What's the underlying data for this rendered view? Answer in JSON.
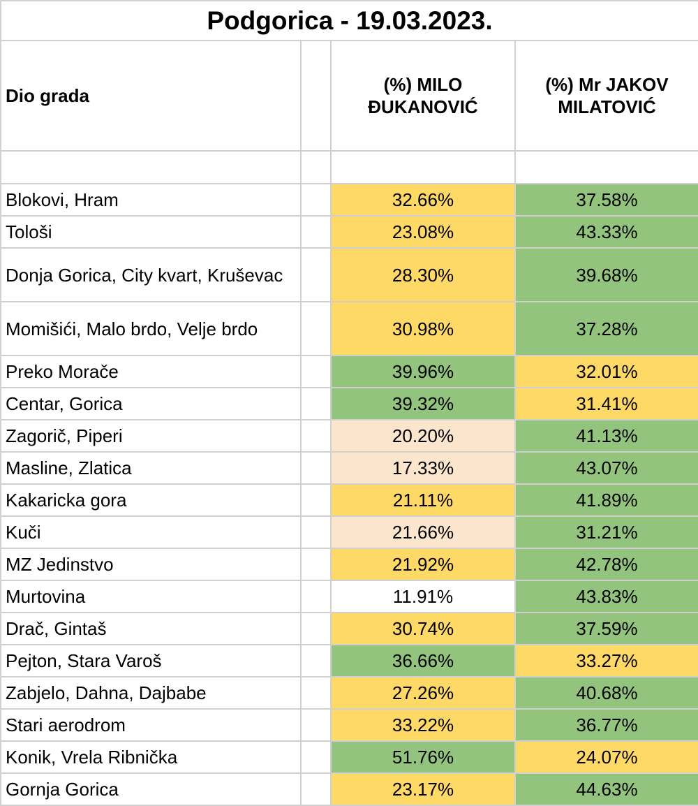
{
  "title": "Podgorica - 19.03.2023.",
  "headers": {
    "district": "Dio grada",
    "djukanovic": "(%) MILO ĐUKANOVIĆ",
    "milatovic": "(%) Mr JAKOV MILATOVIĆ"
  },
  "colors": {
    "yellow": "#ffd966",
    "green": "#93c47d",
    "peach": "#fce5cd",
    "white": "#ffffff"
  },
  "rows": [
    {
      "district": "Blokovi, Hram",
      "djukanovic": "32.66%",
      "milatovic": "37.58%",
      "c1": "yellow",
      "c2": "green"
    },
    {
      "district": "Tološi",
      "djukanovic": "23.08%",
      "milatovic": "43.33%",
      "c1": "yellow",
      "c2": "green"
    },
    {
      "district": "Donja Gorica, City kvart, Kruševac",
      "djukanovic": "28.30%",
      "milatovic": "39.68%",
      "c1": "yellow",
      "c2": "green"
    },
    {
      "district": "Momišići, Malo brdo, Velje brdo",
      "djukanovic": "30.98%",
      "milatovic": "37.28%",
      "c1": "yellow",
      "c2": "green"
    },
    {
      "district": "Preko Morače",
      "djukanovic": "39.96%",
      "milatovic": "32.01%",
      "c1": "green",
      "c2": "yellow"
    },
    {
      "district": "Centar, Gorica",
      "djukanovic": "39.32%",
      "milatovic": "31.41%",
      "c1": "green",
      "c2": "yellow"
    },
    {
      "district": "Zagorič, Piperi",
      "djukanovic": "20.20%",
      "milatovic": "41.13%",
      "c1": "peach",
      "c2": "green"
    },
    {
      "district": "Masline, Zlatica",
      "djukanovic": "17.33%",
      "milatovic": "43.07%",
      "c1": "peach",
      "c2": "green"
    },
    {
      "district": "Kakaricka gora",
      "djukanovic": "21.11%",
      "milatovic": "41.89%",
      "c1": "yellow",
      "c2": "green"
    },
    {
      "district": "Kuči",
      "djukanovic": "21.66%",
      "milatovic": "31.21%",
      "c1": "peach",
      "c2": "green"
    },
    {
      "district": "MZ Jedinstvo",
      "djukanovic": "21.92%",
      "milatovic": "42.78%",
      "c1": "yellow",
      "c2": "green"
    },
    {
      "district": "Murtovina",
      "djukanovic": "11.91%",
      "milatovic": "43.83%",
      "c1": "white",
      "c2": "green"
    },
    {
      "district": "Drač, Gintaš",
      "djukanovic": "30.74%",
      "milatovic": "37.59%",
      "c1": "yellow",
      "c2": "green"
    },
    {
      "district": "Pejton, Stara Varoš",
      "djukanovic": "36.66%",
      "milatovic": "33.27%",
      "c1": "green",
      "c2": "yellow"
    },
    {
      "district": "Zabjelo, Dahna, Dajbabe",
      "djukanovic": "27.26%",
      "milatovic": "40.68%",
      "c1": "yellow",
      "c2": "green"
    },
    {
      "district": "Stari aerodrom",
      "djukanovic": "33.22%",
      "milatovic": "36.77%",
      "c1": "yellow",
      "c2": "green"
    },
    {
      "district": "Konik, Vrela Ribnička",
      "djukanovic": "51.76%",
      "milatovic": "24.07%",
      "c1": "green",
      "c2": "yellow"
    },
    {
      "district": "Gornja Gorica",
      "djukanovic": "23.17%",
      "milatovic": "44.63%",
      "c1": "yellow",
      "c2": "green"
    }
  ]
}
